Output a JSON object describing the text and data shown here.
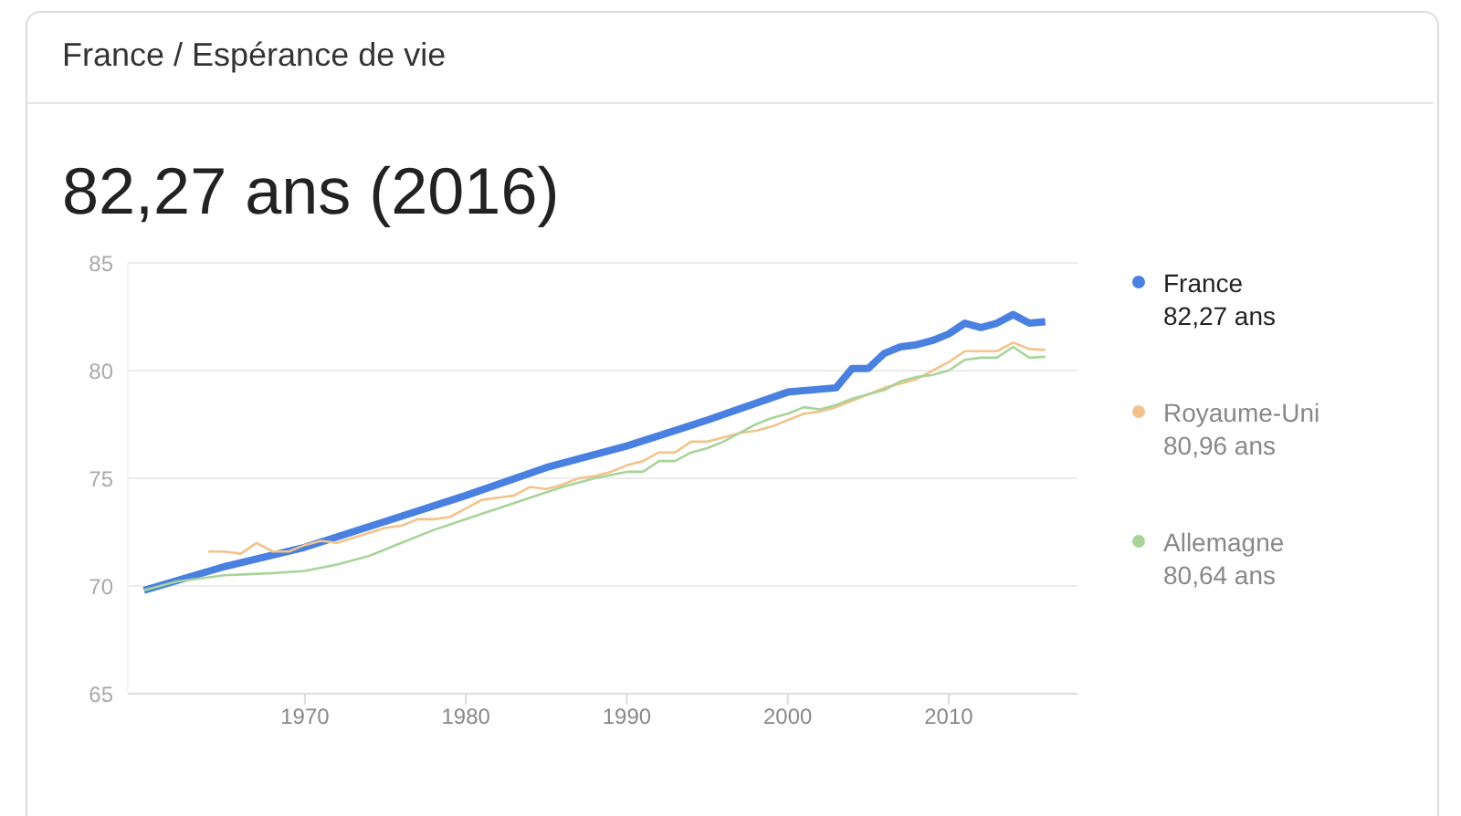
{
  "chart_data": {
    "type": "line",
    "title": "France / Espérance de vie",
    "subtitle": "82,27 ans (2016)",
    "xlim": [
      1959,
      2018
    ],
    "xticks": [
      1970,
      1980,
      1990,
      2000,
      2010
    ],
    "ylim": [
      65,
      85
    ],
    "yticks": [
      65,
      70,
      75,
      80,
      85
    ],
    "grid": "y",
    "legend": "right",
    "marker": "none",
    "annotations": [
      "82,27 ans",
      "80,96 ans",
      "80,64 ans"
    ],
    "series": [
      {
        "name": "France",
        "color": "#4a80e0",
        "x": [
          1960,
          1965,
          1970,
          1975,
          1980,
          1985,
          1990,
          1995,
          2000,
          2003,
          2004,
          2005,
          2006,
          2007,
          2008,
          2009,
          2010,
          2011,
          2012,
          2013,
          2014,
          2015,
          2016
        ],
        "values": [
          69.8,
          70.9,
          71.8,
          73.0,
          74.2,
          75.5,
          76.5,
          77.7,
          79.0,
          79.2,
          80.1,
          80.1,
          80.8,
          81.1,
          81.2,
          81.4,
          81.7,
          82.2,
          82.0,
          82.2,
          82.6,
          82.2,
          82.27
        ]
      },
      {
        "name": "Royaume-Uni",
        "color": "#f2c38c",
        "x": [
          1964,
          1965,
          1966,
          1967,
          1968,
          1969,
          1970,
          1971,
          1972,
          1975,
          1976,
          1977,
          1978,
          1979,
          1980,
          1981,
          1982,
          1983,
          1984,
          1985,
          1986,
          1987,
          1988,
          1989,
          1990,
          1991,
          1992,
          1993,
          1994,
          1995,
          1996,
          1997,
          1998,
          1999,
          2000,
          2001,
          2002,
          2003,
          2004,
          2005,
          2006,
          2007,
          2008,
          2009,
          2010,
          2011,
          2012,
          2013,
          2014,
          2015,
          2016
        ],
        "values": [
          71.6,
          71.6,
          71.5,
          72.0,
          71.6,
          71.6,
          71.9,
          72.1,
          72.0,
          72.7,
          72.8,
          73.1,
          73.1,
          73.2,
          73.6,
          74.0,
          74.1,
          74.2,
          74.6,
          74.5,
          74.7,
          75.0,
          75.1,
          75.3,
          75.6,
          75.8,
          76.2,
          76.2,
          76.7,
          76.7,
          76.9,
          77.1,
          77.2,
          77.4,
          77.7,
          78.0,
          78.1,
          78.3,
          78.6,
          78.9,
          79.2,
          79.4,
          79.6,
          80.0,
          80.4,
          80.9,
          80.9,
          80.9,
          81.3,
          81.0,
          80.96
        ]
      },
      {
        "name": "Allemagne",
        "color": "#a8d49a",
        "x": [
          1960,
          1962,
          1965,
          1968,
          1970,
          1972,
          1974,
          1976,
          1978,
          1980,
          1982,
          1984,
          1986,
          1988,
          1990,
          1991,
          1992,
          1993,
          1994,
          1995,
          1996,
          1997,
          1998,
          1999,
          2000,
          2001,
          2002,
          2003,
          2004,
          2005,
          2006,
          2007,
          2008,
          2009,
          2010,
          2011,
          2012,
          2013,
          2014,
          2015,
          2016
        ],
        "values": [
          69.8,
          70.2,
          70.5,
          70.6,
          70.7,
          71.0,
          71.4,
          72.0,
          72.6,
          73.1,
          73.6,
          74.1,
          74.6,
          75.0,
          75.3,
          75.3,
          75.8,
          75.8,
          76.2,
          76.4,
          76.7,
          77.1,
          77.5,
          77.8,
          78.0,
          78.3,
          78.2,
          78.4,
          78.7,
          78.9,
          79.1,
          79.5,
          79.7,
          79.8,
          80.0,
          80.5,
          80.6,
          80.6,
          81.1,
          80.6,
          80.64
        ]
      }
    ]
  }
}
